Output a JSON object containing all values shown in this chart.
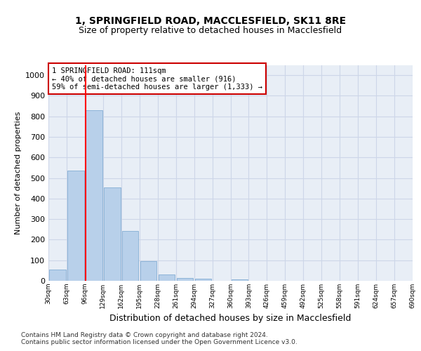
{
  "title1": "1, SPRINGFIELD ROAD, MACCLESFIELD, SK11 8RE",
  "title2": "Size of property relative to detached houses in Macclesfield",
  "xlabel": "Distribution of detached houses by size in Macclesfield",
  "ylabel": "Number of detached properties",
  "bar_values": [
    55,
    535,
    830,
    455,
    243,
    95,
    30,
    15,
    10,
    0,
    8,
    0,
    0,
    0,
    0,
    0,
    0,
    0,
    0,
    0
  ],
  "bin_labels": [
    "30sqm",
    "63sqm",
    "96sqm",
    "129sqm",
    "162sqm",
    "195sqm",
    "228sqm",
    "261sqm",
    "294sqm",
    "327sqm",
    "360sqm",
    "393sqm",
    "426sqm",
    "459sqm",
    "492sqm",
    "525sqm",
    "558sqm",
    "591sqm",
    "624sqm",
    "657sqm",
    "690sqm"
  ],
  "bar_color": "#b8d0ea",
  "bar_edge_color": "#8db4d8",
  "grid_color": "#cdd6e8",
  "background_color": "#e8eef6",
  "red_line_bin_index": 2,
  "annotation_line1": "1 SPRINGFIELD ROAD: 111sqm",
  "annotation_line2": "← 40% of detached houses are smaller (916)",
  "annotation_line3": "59% of semi-detached houses are larger (1,333) →",
  "annotation_box_facecolor": "#ffffff",
  "annotation_box_edgecolor": "#cc0000",
  "ylim": [
    0,
    1050
  ],
  "yticks": [
    0,
    100,
    200,
    300,
    400,
    500,
    600,
    700,
    800,
    900,
    1000
  ],
  "footnote1": "Contains HM Land Registry data © Crown copyright and database right 2024.",
  "footnote2": "Contains public sector information licensed under the Open Government Licence v3.0."
}
